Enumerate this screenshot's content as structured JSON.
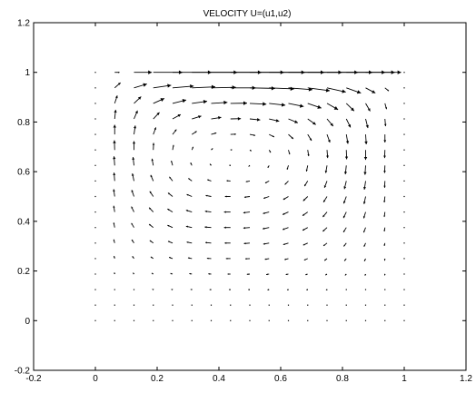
{
  "chart_data": {
    "type": "quiver",
    "title": "VELOCITY   U=(u1,u2)",
    "xlabel": "",
    "ylabel": "",
    "xlim": [
      -0.2,
      1.2
    ],
    "ylim": [
      -0.2,
      1.2
    ],
    "xticks": [
      "-0.2",
      "0",
      "0.2",
      "0.4",
      "0.6",
      "0.8",
      "1",
      "1.2"
    ],
    "yticks": [
      "-0.2",
      "0",
      "0.2",
      "0.4",
      "0.6",
      "0.8",
      "1",
      "1.2"
    ],
    "xtick_values": [
      -0.2,
      0,
      0.2,
      0.4,
      0.6,
      0.8,
      1,
      1.2
    ],
    "ytick_values": [
      -0.2,
      0,
      0.2,
      0.4,
      0.6,
      0.8,
      1,
      1.2
    ],
    "grid": false,
    "color": "#000000",
    "vectors": [
      {
        "y": 1.0,
        "x": [
          0,
          0.0625,
          0.125,
          0.1875,
          0.25,
          0.3125,
          0.375,
          0.4375,
          0.5,
          0.5625,
          0.625,
          0.6875,
          0.75,
          0.8125,
          0.875,
          0.9375,
          1.0
        ],
        "u": [
          0,
          0.015,
          0.055,
          0.09,
          0.12,
          0.14,
          0.155,
          0.165,
          0.17,
          0.17,
          0.165,
          0.155,
          0.14,
          0.12,
          0.09,
          0.05,
          0
        ],
        "v": [
          0,
          0,
          0,
          0,
          0,
          0,
          0,
          0,
          0,
          0,
          0,
          0,
          0,
          0,
          0,
          0,
          0
        ]
      },
      {
        "y": 0.9375,
        "x": [
          0,
          0.0625,
          0.125,
          0.1875,
          0.25,
          0.3125,
          0.375,
          0.4375,
          0.5,
          0.5625,
          0.625,
          0.6875,
          0.75,
          0.8125,
          0.875,
          0.9375,
          1.0
        ],
        "u": [
          0.0,
          0.018,
          0.04,
          0.055,
          0.065,
          0.072,
          0.076,
          0.078,
          0.078,
          0.077,
          0.074,
          0.068,
          0.058,
          0.045,
          0.03,
          0.012,
          0.0
        ],
        "v": [
          0.0,
          0.02,
          0.015,
          0.01,
          0.007,
          0.004,
          0.002,
          0.0,
          -0.002,
          -0.004,
          -0.007,
          -0.011,
          -0.016,
          -0.02,
          -0.02,
          -0.012,
          0.0
        ]
      },
      {
        "y": 0.875,
        "x": [
          0,
          0.0625,
          0.125,
          0.1875,
          0.25,
          0.3125,
          0.375,
          0.4375,
          0.5,
          0.5625,
          0.625,
          0.6875,
          0.75,
          0.8125,
          0.875,
          0.9375,
          1.0
        ],
        "u": [
          0.0,
          0.008,
          0.022,
          0.034,
          0.042,
          0.047,
          0.05,
          0.051,
          0.051,
          0.05,
          0.047,
          0.042,
          0.034,
          0.024,
          0.014,
          0.005,
          0.0
        ],
        "v": [
          0.0,
          0.03,
          0.026,
          0.019,
          0.013,
          0.008,
          0.004,
          0.001,
          -0.003,
          -0.007,
          -0.012,
          -0.018,
          -0.024,
          -0.029,
          -0.03,
          -0.022,
          0.0
        ]
      },
      {
        "y": 0.8125,
        "x": [
          0,
          0.0625,
          0.125,
          0.1875,
          0.25,
          0.3125,
          0.375,
          0.4375,
          0.5,
          0.5625,
          0.625,
          0.6875,
          0.75,
          0.8125,
          0.875,
          0.9375,
          1.0
        ],
        "u": [
          0.0,
          0.003,
          0.011,
          0.019,
          0.025,
          0.029,
          0.031,
          0.032,
          0.032,
          0.031,
          0.029,
          0.025,
          0.019,
          0.013,
          0.007,
          0.002,
          0.0
        ],
        "v": [
          0.0,
          0.035,
          0.032,
          0.025,
          0.017,
          0.011,
          0.006,
          0.001,
          -0.004,
          -0.009,
          -0.015,
          -0.022,
          -0.028,
          -0.033,
          -0.035,
          -0.028,
          0.0
        ]
      },
      {
        "y": 0.75,
        "x": [
          0,
          0.0625,
          0.125,
          0.1875,
          0.25,
          0.3125,
          0.375,
          0.4375,
          0.5,
          0.5625,
          0.625,
          0.6875,
          0.75,
          0.8125,
          0.875,
          0.9375,
          1.0
        ],
        "u": [
          0.0,
          0.0,
          0.004,
          0.008,
          0.012,
          0.015,
          0.016,
          0.017,
          0.017,
          0.016,
          0.015,
          0.012,
          0.009,
          0.005,
          0.002,
          0.0,
          0.0
        ],
        "v": [
          0.0,
          0.037,
          0.034,
          0.027,
          0.019,
          0.012,
          0.006,
          0.001,
          -0.004,
          -0.01,
          -0.017,
          -0.024,
          -0.031,
          -0.036,
          -0.038,
          -0.031,
          0.0
        ]
      },
      {
        "y": 0.6875,
        "x": [
          0,
          0.0625,
          0.125,
          0.1875,
          0.25,
          0.3125,
          0.375,
          0.4375,
          0.5,
          0.5625,
          0.625,
          0.6875,
          0.75,
          0.8125,
          0.875,
          0.9375,
          1.0
        ],
        "u": [
          0.0,
          -0.001,
          0.0,
          0.001,
          0.003,
          0.004,
          0.005,
          0.005,
          0.005,
          0.005,
          0.004,
          0.003,
          0.002,
          0.001,
          0.0,
          -0.001,
          0.0
        ],
        "v": [
          0.0,
          0.037,
          0.034,
          0.027,
          0.019,
          0.012,
          0.006,
          0.001,
          -0.004,
          -0.01,
          -0.017,
          -0.024,
          -0.031,
          -0.036,
          -0.038,
          -0.031,
          0.0
        ]
      },
      {
        "y": 0.625,
        "x": [
          0,
          0.0625,
          0.125,
          0.1875,
          0.25,
          0.3125,
          0.375,
          0.4375,
          0.5,
          0.5625,
          0.625,
          0.6875,
          0.75,
          0.8125,
          0.875,
          0.9375,
          1.0
        ],
        "u": [
          0.0,
          -0.002,
          -0.003,
          -0.004,
          -0.004,
          -0.004,
          -0.004,
          -0.004,
          -0.004,
          -0.004,
          -0.004,
          -0.004,
          -0.004,
          -0.003,
          -0.002,
          -0.001,
          0.0
        ],
        "v": [
          0.0,
          0.035,
          0.032,
          0.026,
          0.018,
          0.011,
          0.006,
          0.001,
          -0.004,
          -0.009,
          -0.016,
          -0.023,
          -0.029,
          -0.034,
          -0.036,
          -0.029,
          0.0
        ]
      },
      {
        "y": 0.5625,
        "x": [
          0,
          0.0625,
          0.125,
          0.1875,
          0.25,
          0.3125,
          0.375,
          0.4375,
          0.5,
          0.5625,
          0.625,
          0.6875,
          0.75,
          0.8125,
          0.875,
          0.9375,
          1.0
        ],
        "u": [
          0.0,
          -0.002,
          -0.005,
          -0.008,
          -0.01,
          -0.011,
          -0.012,
          -0.012,
          -0.012,
          -0.012,
          -0.011,
          -0.01,
          -0.008,
          -0.006,
          -0.004,
          -0.001,
          0.0
        ],
        "v": [
          0.0,
          0.032,
          0.029,
          0.023,
          0.016,
          0.01,
          0.005,
          0.001,
          -0.003,
          -0.008,
          -0.014,
          -0.02,
          -0.026,
          -0.031,
          -0.033,
          -0.026,
          0.0
        ]
      },
      {
        "y": 0.5,
        "x": [
          0,
          0.0625,
          0.125,
          0.1875,
          0.25,
          0.3125,
          0.375,
          0.4375,
          0.5,
          0.5625,
          0.625,
          0.6875,
          0.75,
          0.8125,
          0.875,
          0.9375,
          1.0
        ],
        "u": [
          0.0,
          -0.003,
          -0.007,
          -0.011,
          -0.014,
          -0.016,
          -0.017,
          -0.017,
          -0.017,
          -0.017,
          -0.016,
          -0.014,
          -0.011,
          -0.008,
          -0.005,
          -0.002,
          0.0
        ],
        "v": [
          0.0,
          0.028,
          0.025,
          0.02,
          0.014,
          0.008,
          0.004,
          0.0,
          -0.003,
          -0.007,
          -0.012,
          -0.017,
          -0.022,
          -0.027,
          -0.029,
          -0.023,
          0.0
        ]
      },
      {
        "y": 0.4375,
        "x": [
          0,
          0.0625,
          0.125,
          0.1875,
          0.25,
          0.3125,
          0.375,
          0.4375,
          0.5,
          0.5625,
          0.625,
          0.6875,
          0.75,
          0.8125,
          0.875,
          0.9375,
          1.0
        ],
        "u": [
          0.0,
          -0.003,
          -0.008,
          -0.013,
          -0.016,
          -0.018,
          -0.019,
          -0.02,
          -0.02,
          -0.019,
          -0.018,
          -0.016,
          -0.013,
          -0.009,
          -0.006,
          -0.002,
          0.0
        ],
        "v": [
          0.0,
          0.024,
          0.021,
          0.017,
          0.012,
          0.007,
          0.003,
          0.0,
          -0.003,
          -0.006,
          -0.01,
          -0.014,
          -0.019,
          -0.023,
          -0.024,
          -0.019,
          0.0
        ]
      },
      {
        "y": 0.375,
        "x": [
          0,
          0.0625,
          0.125,
          0.1875,
          0.25,
          0.3125,
          0.375,
          0.4375,
          0.5,
          0.5625,
          0.625,
          0.6875,
          0.75,
          0.8125,
          0.875,
          0.9375,
          1.0
        ],
        "u": [
          0.0,
          -0.003,
          -0.008,
          -0.013,
          -0.016,
          -0.018,
          -0.02,
          -0.02,
          -0.02,
          -0.02,
          -0.018,
          -0.016,
          -0.013,
          -0.009,
          -0.006,
          -0.002,
          0.0
        ],
        "v": [
          0.0,
          0.019,
          0.017,
          0.013,
          0.009,
          0.005,
          0.002,
          0.0,
          -0.002,
          -0.005,
          -0.008,
          -0.011,
          -0.015,
          -0.018,
          -0.019,
          -0.015,
          0.0
        ]
      },
      {
        "y": 0.3125,
        "x": [
          0,
          0.0625,
          0.125,
          0.1875,
          0.25,
          0.3125,
          0.375,
          0.4375,
          0.5,
          0.5625,
          0.625,
          0.6875,
          0.75,
          0.8125,
          0.875,
          0.9375,
          1.0
        ],
        "u": [
          0.0,
          -0.003,
          -0.007,
          -0.011,
          -0.014,
          -0.016,
          -0.018,
          -0.018,
          -0.018,
          -0.018,
          -0.016,
          -0.014,
          -0.011,
          -0.008,
          -0.005,
          -0.002,
          0.0
        ],
        "v": [
          0.0,
          0.014,
          0.013,
          0.01,
          0.007,
          0.004,
          0.002,
          0.0,
          -0.002,
          -0.004,
          -0.006,
          -0.008,
          -0.011,
          -0.013,
          -0.014,
          -0.011,
          0.0
        ]
      },
      {
        "y": 0.25,
        "x": [
          0,
          0.0625,
          0.125,
          0.1875,
          0.25,
          0.3125,
          0.375,
          0.4375,
          0.5,
          0.5625,
          0.625,
          0.6875,
          0.75,
          0.8125,
          0.875,
          0.9375,
          1.0
        ],
        "u": [
          0.0,
          -0.002,
          -0.005,
          -0.008,
          -0.011,
          -0.012,
          -0.013,
          -0.014,
          -0.014,
          -0.013,
          -0.012,
          -0.011,
          -0.008,
          -0.006,
          -0.004,
          -0.001,
          0.0
        ],
        "v": [
          0.0,
          0.01,
          0.009,
          0.007,
          0.005,
          0.003,
          0.001,
          0.0,
          -0.001,
          -0.003,
          -0.004,
          -0.006,
          -0.008,
          -0.009,
          -0.01,
          -0.008,
          0.0
        ]
      },
      {
        "y": 0.1875,
        "x": [
          0,
          0.0625,
          0.125,
          0.1875,
          0.25,
          0.3125,
          0.375,
          0.4375,
          0.5,
          0.5625,
          0.625,
          0.6875,
          0.75,
          0.8125,
          0.875,
          0.9375,
          1.0
        ],
        "u": [
          0.0,
          -0.001,
          -0.003,
          -0.005,
          -0.007,
          -0.008,
          -0.009,
          -0.009,
          -0.009,
          -0.009,
          -0.008,
          -0.007,
          -0.005,
          -0.004,
          -0.002,
          -0.001,
          0.0
        ],
        "v": [
          0.0,
          0.006,
          0.005,
          0.004,
          0.003,
          0.002,
          0.001,
          0.0,
          -0.001,
          -0.002,
          -0.002,
          -0.003,
          -0.004,
          -0.005,
          -0.006,
          -0.005,
          0.0
        ]
      },
      {
        "y": 0.125,
        "x": [
          0,
          0.0625,
          0.125,
          0.1875,
          0.25,
          0.3125,
          0.375,
          0.4375,
          0.5,
          0.5625,
          0.625,
          0.6875,
          0.75,
          0.8125,
          0.875,
          0.9375,
          1.0
        ],
        "u": [
          0.0,
          -0.001,
          -0.002,
          -0.003,
          -0.004,
          -0.004,
          -0.005,
          -0.005,
          -0.005,
          -0.005,
          -0.004,
          -0.004,
          -0.003,
          -0.002,
          -0.001,
          0.0,
          0.0
        ],
        "v": [
          0.0,
          0.003,
          0.002,
          0.002,
          0.001,
          0.001,
          0.0,
          0.0,
          0.0,
          -0.001,
          -0.001,
          -0.001,
          -0.002,
          -0.002,
          -0.003,
          -0.002,
          0.0
        ]
      },
      {
        "y": 0.0625,
        "x": [
          0,
          0.0625,
          0.125,
          0.1875,
          0.25,
          0.3125,
          0.375,
          0.4375,
          0.5,
          0.5625,
          0.625,
          0.6875,
          0.75,
          0.8125,
          0.875,
          0.9375,
          1.0
        ],
        "u": [
          0.0,
          0.0,
          -0.001,
          -0.001,
          -0.001,
          -0.002,
          -0.002,
          -0.002,
          -0.002,
          -0.002,
          -0.002,
          -0.001,
          -0.001,
          -0.001,
          0.0,
          0.0,
          0.0
        ],
        "v": [
          0.0,
          0.001,
          0.001,
          0.0,
          0.0,
          0.0,
          0.0,
          0.0,
          0.0,
          0.0,
          0.0,
          0.0,
          -0.001,
          -0.001,
          -0.001,
          -0.001,
          0.0
        ]
      },
      {
        "y": 0.0,
        "x": [
          0,
          0.0625,
          0.125,
          0.1875,
          0.25,
          0.3125,
          0.375,
          0.4375,
          0.5,
          0.5625,
          0.625,
          0.6875,
          0.75,
          0.8125,
          0.875,
          0.9375,
          1.0
        ],
        "u": [
          0,
          0,
          0,
          0,
          0,
          0,
          0,
          0,
          0,
          0,
          0,
          0,
          0,
          0,
          0,
          0,
          0
        ],
        "v": [
          0,
          0,
          0,
          0,
          0,
          0,
          0,
          0,
          0,
          0,
          0,
          0,
          0,
          0,
          0,
          0,
          0
        ]
      }
    ]
  }
}
